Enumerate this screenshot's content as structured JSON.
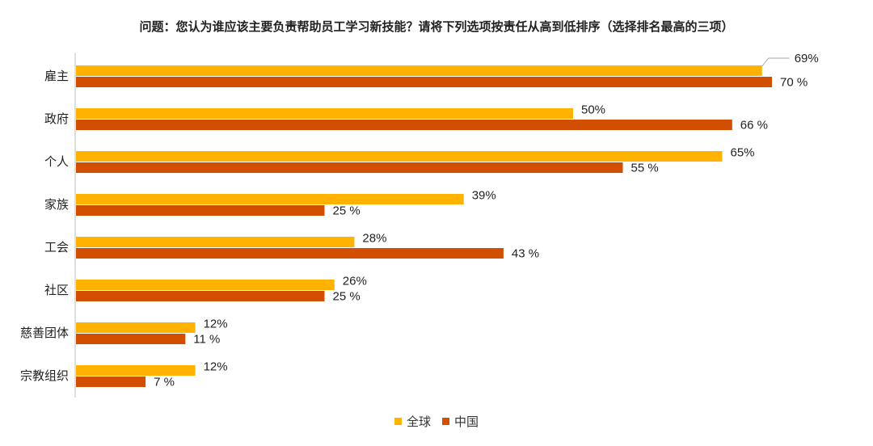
{
  "chart_data": {
    "type": "bar",
    "orientation": "horizontal",
    "title": "问题：您认为谁应该主要负责帮助员工学习新技能？请将下列选项按责任从高到低排序（选择排名最高的三项）",
    "categories": [
      "雇主",
      "政府",
      "个人",
      "家族",
      "工会",
      "社区",
      "慈善团体",
      "宗教组织"
    ],
    "series": [
      {
        "name": "全球",
        "color": "#FFB300",
        "values": [
          69,
          50,
          65,
          39,
          28,
          26,
          12,
          12
        ],
        "labels": [
          "69%",
          "50%",
          "65%",
          "39%",
          "28%",
          "26%",
          "12%",
          "12%"
        ]
      },
      {
        "name": "中国",
        "color": "#D24E01",
        "values": [
          70,
          66,
          55,
          25,
          43,
          25,
          11,
          7
        ],
        "labels": [
          "70 %",
          "66 %",
          "55 %",
          "25 %",
          "43 %",
          "25 %",
          "11 %",
          "7 %"
        ]
      }
    ],
    "xlim": [
      0,
      100
    ],
    "grid": false,
    "legend_position": "bottom"
  }
}
